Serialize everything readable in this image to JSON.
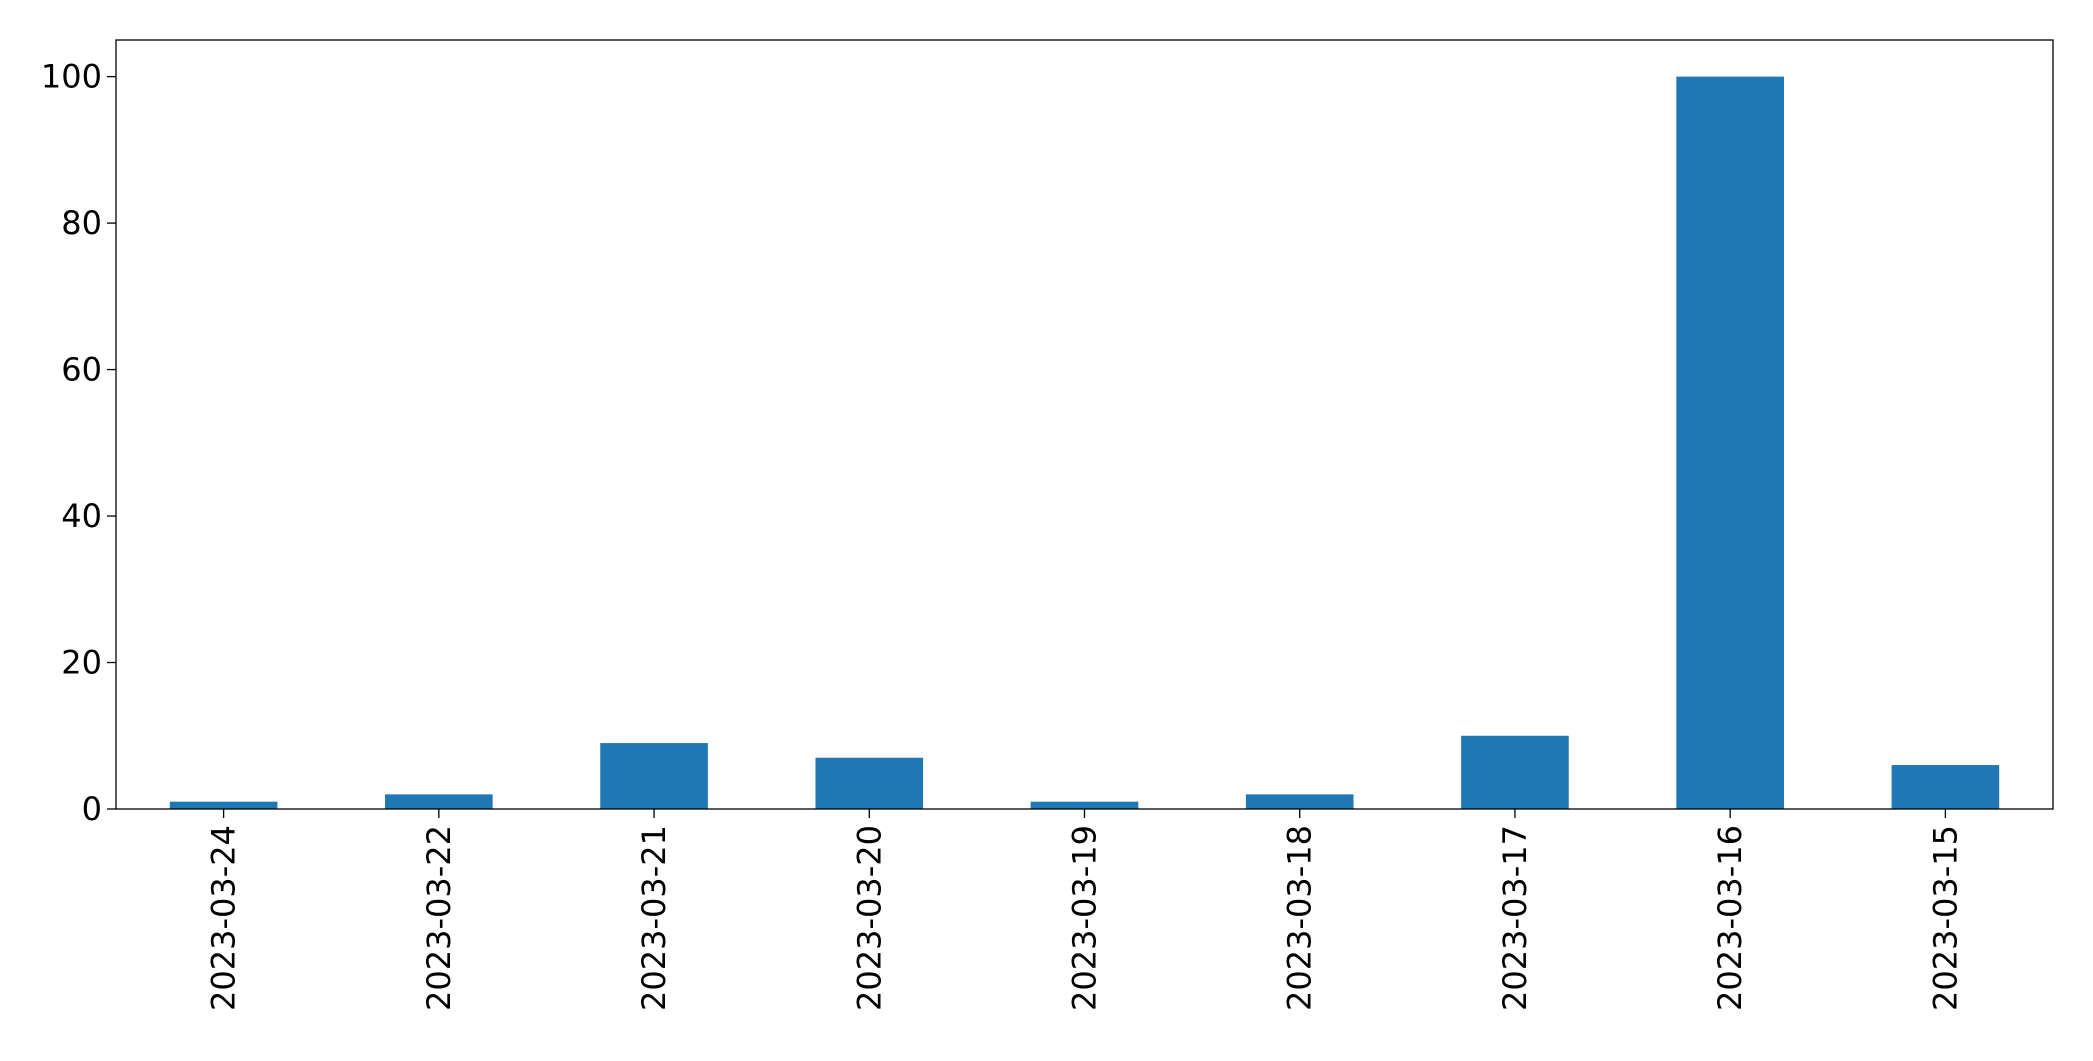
{
  "chart_data": {
    "type": "bar",
    "categories": [
      "2023-03-24",
      "2023-03-22",
      "2023-03-21",
      "2023-03-20",
      "2023-03-19",
      "2023-03-18",
      "2023-03-17",
      "2023-03-16",
      "2023-03-15"
    ],
    "values": [
      1,
      2,
      9,
      7,
      1,
      2,
      10,
      100,
      6
    ],
    "color": "#1f77b4",
    "ylim": [
      0,
      105
    ],
    "yticks": [
      0,
      20,
      40,
      60,
      80,
      100
    ],
    "grid": false
  }
}
